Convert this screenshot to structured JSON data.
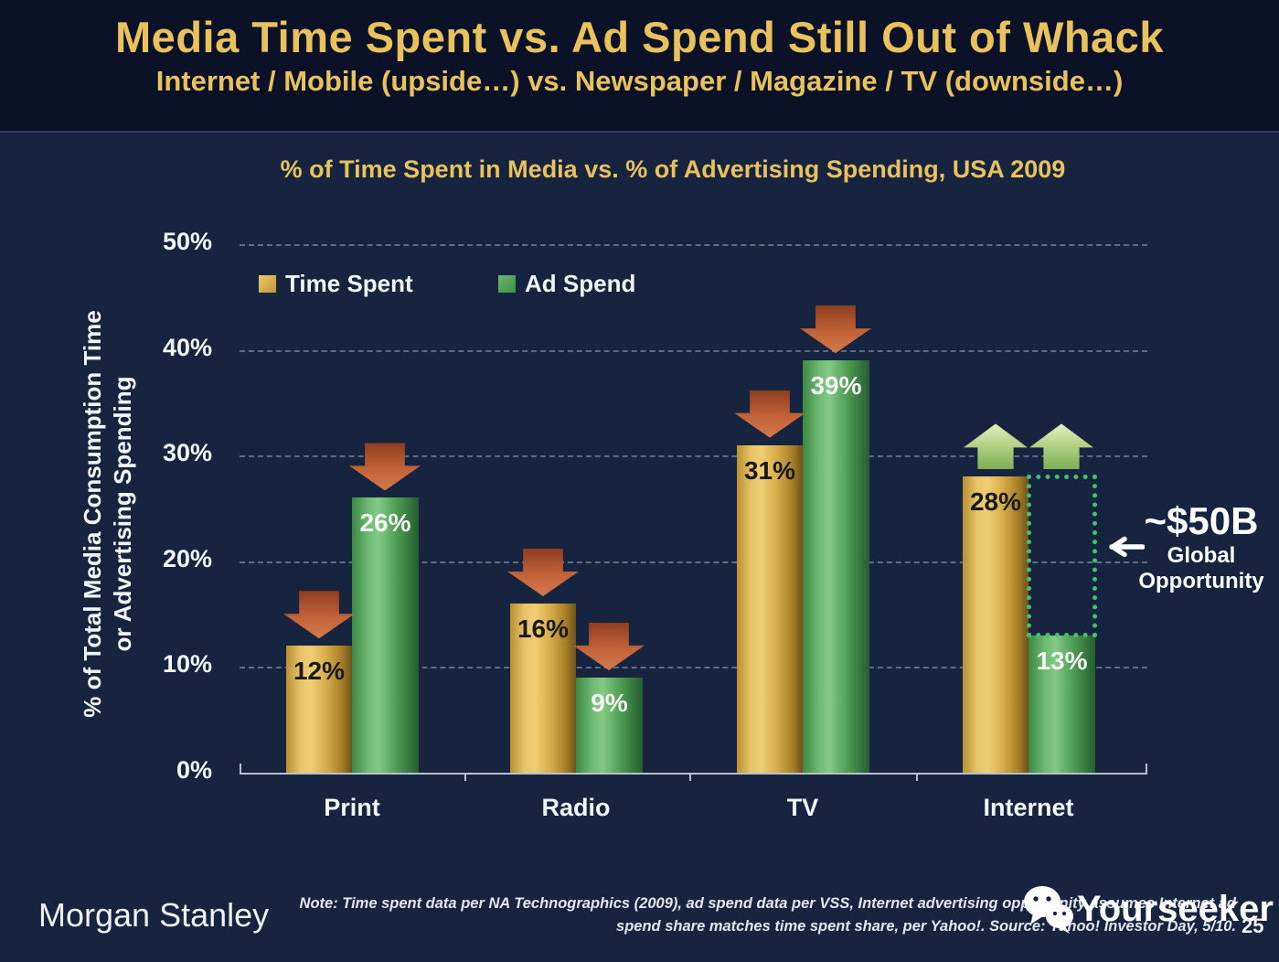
{
  "slide": {
    "title": "Media Time Spent vs. Ad Spend Still Out of Whack",
    "subtitle": "Internet / Mobile (upside…) vs. Newspaper / Magazine / TV (downside…)",
    "page_number": "25"
  },
  "chart_data": {
    "type": "bar",
    "title": "% of Time Spent in Media vs. % of Advertising Spending, USA 2009",
    "categories": [
      "Print",
      "Radio",
      "TV",
      "Internet"
    ],
    "series": [
      {
        "name": "Time Spent",
        "color": "#d9ae4b",
        "values": [
          12,
          16,
          31,
          28
        ],
        "trend": [
          "down",
          "down",
          "down",
          "up"
        ]
      },
      {
        "name": "Ad Spend",
        "color": "#51a055",
        "values": [
          26,
          9,
          39,
          13
        ],
        "trend": [
          "down",
          "down",
          "down",
          "up"
        ]
      }
    ],
    "ylabel_line1": "% of Total Media Consumption Time",
    "ylabel_line2": "or Advertising Spending",
    "yticks": [
      "0%",
      "10%",
      "20%",
      "30%",
      "40%",
      "50%"
    ],
    "ylim": [
      0,
      50
    ],
    "grid": "horizontal-dashed",
    "legend_position": "top-left-inside",
    "opportunity": {
      "category": "Internet",
      "series": "Ad Spend",
      "from_pct": 13,
      "to_pct": 28,
      "value": "~$50B",
      "label_line1": "Global",
      "label_line2": "Opportunity"
    }
  },
  "footer": {
    "brand": "Morgan Stanley",
    "note_line1": "Note: Time spent data per NA Technographics (2009), ad spend data per VSS, Internet advertising opportunity assumes Internet ad",
    "note_line2": "spend share matches time spent share, per Yahoo!. Source: Yahoo! Investor Day, 5/10.",
    "watermark": "Yourseeker"
  }
}
